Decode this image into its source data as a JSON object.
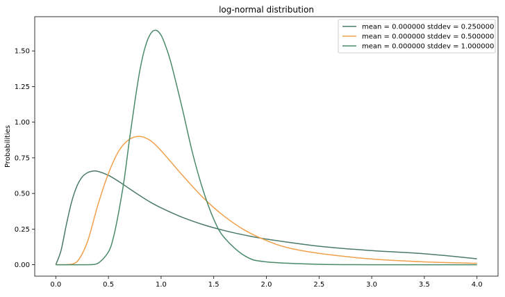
{
  "chart_data": {
    "type": "line",
    "title": "log-normal distribution",
    "xlabel": "",
    "ylabel": "Probabilities",
    "xlim": [
      -0.2,
      4.2
    ],
    "ylim": [
      -0.08,
      1.74
    ],
    "xticks": [
      0.0,
      0.5,
      1.0,
      1.5,
      2.0,
      2.5,
      3.0,
      3.5,
      4.0
    ],
    "xtick_labels": [
      "0.0",
      "0.5",
      "1.0",
      "1.5",
      "2.0",
      "2.5",
      "3.0",
      "3.5",
      "4.0"
    ],
    "yticks": [
      0.0,
      0.25,
      0.5,
      0.75,
      1.0,
      1.25,
      1.5
    ],
    "ytick_labels": [
      "0.00",
      "0.25",
      "0.50",
      "0.75",
      "1.00",
      "1.25",
      "1.50"
    ],
    "grid": false,
    "legend_position": "top-right",
    "series": [
      {
        "name": "mean = 0.000000 stddev = 0.250000",
        "color": "#4a7a6a",
        "x": [
          0.0,
          0.05,
          0.1,
          0.15,
          0.2,
          0.25,
          0.3,
          0.35,
          0.4,
          0.5,
          0.6,
          0.7,
          0.8,
          0.9,
          1.0,
          1.2,
          1.4,
          1.6,
          1.8,
          2.0,
          2.5,
          3.0,
          3.5,
          4.0
        ],
        "y": [
          0.0,
          0.1,
          0.28,
          0.44,
          0.55,
          0.615,
          0.645,
          0.657,
          0.655,
          0.627,
          0.583,
          0.533,
          0.484,
          0.438,
          0.399,
          0.333,
          0.281,
          0.24,
          0.207,
          0.18,
          0.13,
          0.099,
          0.077,
          0.042
        ]
      },
      {
        "name": "mean = 0.000000 stddev = 0.500000",
        "color": "#f0a04b",
        "x": [
          0.0,
          0.1,
          0.2,
          0.3,
          0.4,
          0.5,
          0.6,
          0.7,
          0.8,
          0.9,
          1.0,
          1.2,
          1.4,
          1.6,
          1.8,
          2.0,
          2.2,
          2.5,
          3.0,
          3.5,
          4.0
        ],
        "y": [
          0.0,
          0.0,
          0.02,
          0.16,
          0.42,
          0.64,
          0.8,
          0.88,
          0.9,
          0.87,
          0.8,
          0.63,
          0.47,
          0.34,
          0.24,
          0.17,
          0.12,
          0.08,
          0.04,
          0.02,
          0.01
        ]
      },
      {
        "name": "mean = 0.000000 stddev = 1.000000",
        "color": "#4a8a6a",
        "x": [
          0.0,
          0.3,
          0.4,
          0.5,
          0.55,
          0.6,
          0.65,
          0.7,
          0.75,
          0.8,
          0.85,
          0.9,
          0.95,
          1.0,
          1.05,
          1.1,
          1.2,
          1.3,
          1.4,
          1.5,
          1.6,
          1.8,
          2.0,
          2.5,
          3.0,
          4.0
        ],
        "y": [
          0.0,
          0.0,
          0.01,
          0.09,
          0.2,
          0.38,
          0.6,
          0.88,
          1.14,
          1.37,
          1.53,
          1.62,
          1.645,
          1.61,
          1.52,
          1.4,
          1.1,
          0.78,
          0.52,
          0.32,
          0.19,
          0.06,
          0.02,
          0.003,
          0.0,
          0.0
        ]
      }
    ]
  }
}
